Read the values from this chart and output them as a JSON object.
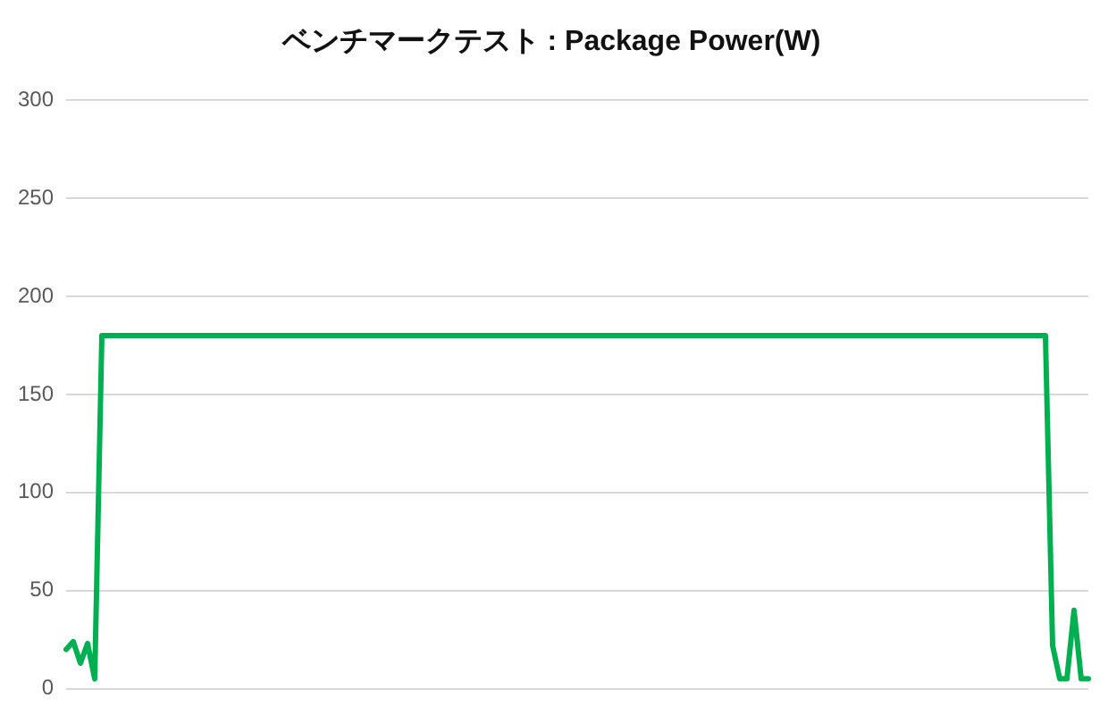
{
  "chart_data": {
    "type": "line",
    "title": "ベンチマークテスト : Package Power(W)",
    "categories": [
      null,
      null,
      null,
      null,
      null,
      null,
      null,
      null,
      null,
      null,
      null,
      null,
      null,
      null,
      null,
      null,
      null,
      null,
      null,
      null,
      null,
      null,
      null,
      null,
      null,
      null,
      null,
      null,
      null,
      null,
      null,
      null,
      null,
      null,
      null,
      null,
      null,
      null,
      null,
      null,
      null,
      null,
      null,
      null,
      null,
      null,
      null,
      null,
      null,
      null,
      null,
      null,
      null,
      null,
      null,
      null,
      null,
      null,
      null,
      null,
      null,
      null,
      null,
      null,
      null,
      null,
      null,
      null,
      null,
      null,
      null,
      null,
      null,
      null,
      null,
      null,
      null,
      null,
      null,
      null,
      null,
      null,
      null,
      null,
      null,
      null,
      null,
      null,
      null,
      null,
      null,
      null,
      null,
      null,
      null,
      null,
      null,
      null,
      null,
      null,
      null,
      null,
      null,
      null,
      null,
      null,
      null,
      null,
      null,
      null,
      null,
      null,
      null,
      null,
      null,
      null,
      null,
      null,
      null,
      null,
      null,
      null,
      null,
      null,
      null,
      null,
      null,
      null,
      null,
      null,
      null,
      null,
      null,
      null,
      null,
      null,
      null,
      null,
      null,
      null,
      null,
      null,
      null,
      null
    ],
    "series": [
      {
        "color": "#00b050",
        "values": [
          20,
          24,
          13,
          23,
          5,
          180,
          180,
          180,
          180,
          180,
          180,
          180,
          180,
          180,
          180,
          180,
          180,
          180,
          180,
          180,
          180,
          180,
          180,
          180,
          180,
          180,
          180,
          180,
          180,
          180,
          180,
          180,
          180,
          180,
          180,
          180,
          180,
          180,
          180,
          180,
          180,
          180,
          180,
          180,
          180,
          180,
          180,
          180,
          180,
          180,
          180,
          180,
          180,
          180,
          180,
          180,
          180,
          180,
          180,
          180,
          180,
          180,
          180,
          180,
          180,
          180,
          180,
          180,
          180,
          180,
          180,
          180,
          180,
          180,
          180,
          180,
          180,
          180,
          180,
          180,
          180,
          180,
          180,
          180,
          180,
          180,
          180,
          180,
          180,
          180,
          180,
          180,
          180,
          180,
          180,
          180,
          180,
          180,
          180,
          180,
          180,
          180,
          180,
          180,
          180,
          180,
          180,
          180,
          180,
          180,
          180,
          180,
          180,
          180,
          180,
          180,
          180,
          180,
          180,
          180,
          180,
          180,
          180,
          180,
          180,
          180,
          180,
          180,
          180,
          180,
          180,
          180,
          180,
          180,
          180,
          180,
          180,
          180,
          22,
          5,
          5,
          40,
          5,
          5
        ]
      }
    ],
    "ylim": [
      0,
      300
    ],
    "yticks": [
      0,
      50,
      100,
      150,
      200,
      250,
      300
    ],
    "grid": "y",
    "legend": false,
    "tick_labels": "y",
    "marker": "none",
    "line_style": "solid"
  }
}
